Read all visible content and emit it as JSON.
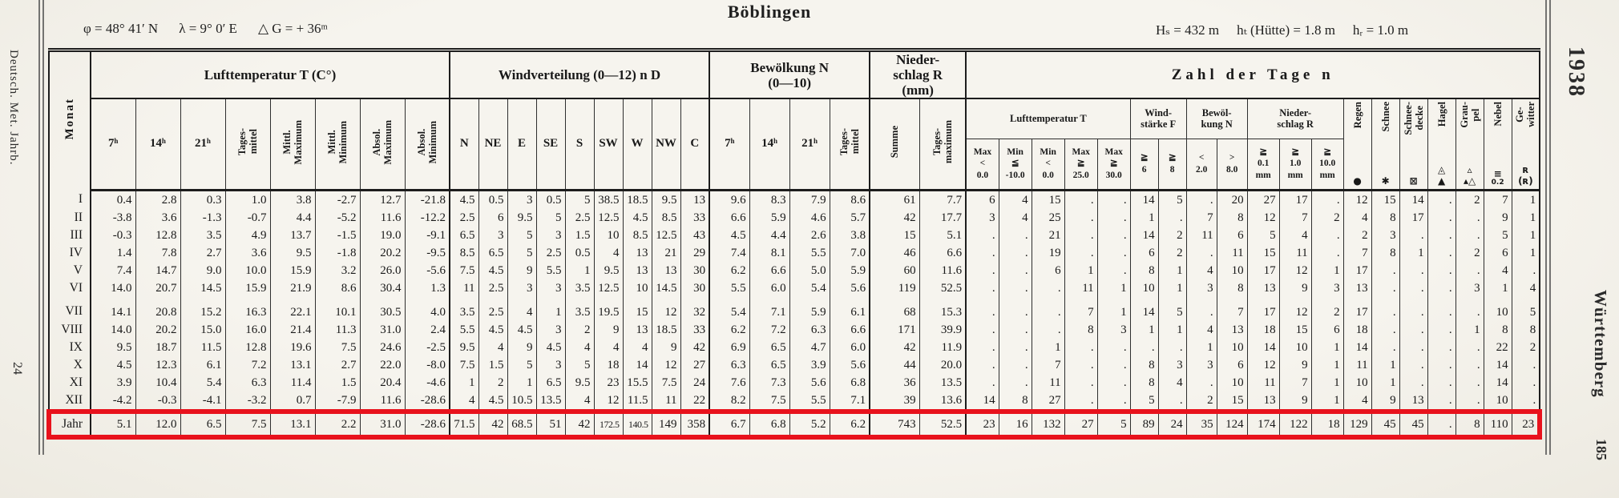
{
  "annotation": {
    "label": "year-row-highlight",
    "color": "#e8121c"
  },
  "margins": {
    "left_top": "Deutsch. Met. Jahrb.",
    "left_bottom": "24",
    "right_year": "1938",
    "right_region": "Württemberg",
    "right_page": "185"
  },
  "header": {
    "title": "Böblingen",
    "phi": "φ = 48° 41′ N",
    "lambda": "λ = 9° 0′ E",
    "delta_g": "△ G = + 36ᵐ",
    "h_station": "Hₛ = 432 m",
    "h_hut": "hₜ (Hütte) = 1.8 m",
    "h_rain": "hᵣ = 1.0 m"
  },
  "table": {
    "month_header": "Monat",
    "groups": [
      {
        "id": "temp",
        "title": "Lufttemperatur T (C°)",
        "cols": [
          "7ʰ",
          "14ʰ",
          "21ʰ",
          "Tages-\nmittel",
          "Mittl.\nMaximum",
          "Mittl.\nMinimum",
          "Absol.\nMaximum",
          "Absol.\nMinimum"
        ]
      },
      {
        "id": "wind",
        "title": "Windverteilung (0—12) n D",
        "cols": [
          "N",
          "NE",
          "E",
          "SE",
          "S",
          "SW",
          "W",
          "NW",
          "C"
        ]
      },
      {
        "id": "cloud",
        "title": "Bewölkung N\n(0—10)",
        "cols": [
          "7ʰ",
          "14ʰ",
          "21ʰ",
          "Tages-\nmittel"
        ]
      },
      {
        "id": "precip",
        "title": "Nieder-\nschlag R\n(mm)",
        "cols": [
          "Summe",
          "Tages-\nmaximum"
        ]
      },
      {
        "id": "days",
        "title": "Zahl der Tage n",
        "subgroups": [
          {
            "title": "Lufttemperatur T",
            "cols": [
              "Max\n<\n0.0",
              "Min\n≦\n-10.0",
              "Min\n<\n0.0",
              "Max\n≧\n25.0",
              "Max\n≧\n30.0"
            ]
          },
          {
            "title": "Wind-\nstärke F",
            "cols": [
              "≧\n6",
              "≧\n8"
            ]
          },
          {
            "title": "Bewöl-\nkung N",
            "cols": [
              "<\n2.0",
              ">\n8.0"
            ]
          },
          {
            "title": "Nieder-\nschlag R",
            "cols": [
              "≧\n0.1\nmm",
              "≧\n1.0\nmm",
              "≧\n10.0\nmm"
            ]
          }
        ],
        "singles": [
          {
            "label": "Regen",
            "icon": "●",
            "icon_name": "rain-icon"
          },
          {
            "label": "Schnee",
            "icon": "✱",
            "icon_name": "snow-icon"
          },
          {
            "label": "Schnee-\ndecke",
            "icon": "⊠",
            "icon_name": "snow-cover-icon"
          },
          {
            "label": "Hagel",
            "icon": "◬\n▲",
            "icon_name": "hail-icon"
          },
          {
            "label": "Grau-\npel",
            "icon": "▵\n▴△",
            "icon_name": "graupel-icon"
          },
          {
            "label": "Nebel",
            "icon": "≡",
            "icon_sub": "0.2",
            "icon_name": "fog-icon"
          },
          {
            "label": "Ge-\nwitter",
            "icon": "ʀ\n(ʀ)",
            "icon_name": "thunderstorm-icon"
          }
        ]
      }
    ],
    "rows": [
      {
        "month": "I",
        "values": [
          "0.4",
          "2.8",
          "0.3",
          "1.0",
          "3.8",
          "-2.7",
          "12.7",
          "-21.8",
          "4.5",
          "0.5",
          "3",
          "0.5",
          "5",
          "38.5",
          "18.5",
          "9.5",
          "13",
          "9.6",
          "8.3",
          "7.9",
          "8.6",
          "61",
          "7.7",
          "6",
          "4",
          "15",
          ".",
          ".",
          "14",
          "5",
          ".",
          "20",
          "27",
          "17",
          ".",
          "12",
          "15",
          "14",
          ".",
          "2",
          "7",
          "1"
        ]
      },
      {
        "month": "II",
        "values": [
          "-3.8",
          "3.6",
          "-1.3",
          "-0.7",
          "4.4",
          "-5.2",
          "11.6",
          "-12.2",
          "2.5",
          "6",
          "9.5",
          "5",
          "2.5",
          "12.5",
          "4.5",
          "8.5",
          "33",
          "6.6",
          "5.9",
          "4.6",
          "5.7",
          "42",
          "17.7",
          "3",
          "4",
          "25",
          ".",
          ".",
          "1",
          ".",
          "7",
          "8",
          "12",
          "7",
          "2",
          "4",
          "8",
          "17",
          ".",
          ".",
          "9",
          "1"
        ]
      },
      {
        "month": "III",
        "values": [
          "-0.3",
          "12.8",
          "3.5",
          "4.9",
          "13.7",
          "-1.5",
          "19.0",
          "-9.1",
          "6.5",
          "3",
          "5",
          "3",
          "1.5",
          "10",
          "8.5",
          "12.5",
          "43",
          "4.5",
          "4.4",
          "2.6",
          "3.8",
          "15",
          "5.1",
          ".",
          ".",
          "21",
          ".",
          ".",
          "14",
          "2",
          "11",
          "6",
          "5",
          "4",
          ".",
          "2",
          "3",
          ".",
          ".",
          ".",
          "5",
          "1"
        ]
      },
      {
        "month": "IV",
        "values": [
          "1.4",
          "7.8",
          "2.7",
          "3.6",
          "9.5",
          "-1.8",
          "20.2",
          "-9.5",
          "8.5",
          "6.5",
          "5",
          "2.5",
          "0.5",
          "4",
          "13",
          "21",
          "29",
          "7.4",
          "8.1",
          "5.5",
          "7.0",
          "46",
          "6.6",
          ".",
          ".",
          "19",
          ".",
          ".",
          "6",
          "2",
          ".",
          "11",
          "15",
          "11",
          ".",
          "7",
          "8",
          "1",
          ".",
          "2",
          "6",
          "1"
        ]
      },
      {
        "month": "V",
        "values": [
          "7.4",
          "14.7",
          "9.0",
          "10.0",
          "15.9",
          "3.2",
          "26.0",
          "-5.6",
          "7.5",
          "4.5",
          "9",
          "5.5",
          "1",
          "9.5",
          "13",
          "13",
          "30",
          "6.2",
          "6.6",
          "5.0",
          "5.9",
          "60",
          "11.6",
          ".",
          ".",
          "6",
          "1",
          ".",
          "8",
          "1",
          "4",
          "10",
          "17",
          "12",
          "1",
          "17",
          ".",
          ".",
          ".",
          ".",
          "4",
          "."
        ]
      },
      {
        "month": "VI",
        "values": [
          "14.0",
          "20.7",
          "14.5",
          "15.9",
          "21.9",
          "8.6",
          "30.4",
          "1.3",
          "11",
          "2.5",
          "3",
          "3",
          "3.5",
          "12.5",
          "10",
          "14.5",
          "30",
          "5.5",
          "6.0",
          "5.4",
          "5.6",
          "119",
          "52.5",
          ".",
          ".",
          ".",
          "11",
          "1",
          "10",
          "1",
          "3",
          "8",
          "13",
          "9",
          "3",
          "13",
          ".",
          ".",
          ".",
          "3",
          "1",
          "4"
        ]
      },
      {
        "month": "VII",
        "values": [
          "14.1",
          "20.8",
          "15.2",
          "16.3",
          "22.1",
          "10.1",
          "30.5",
          "4.0",
          "3.5",
          "2.5",
          "4",
          "1",
          "3.5",
          "19.5",
          "15",
          "12",
          "32",
          "5.4",
          "7.1",
          "5.9",
          "6.1",
          "68",
          "15.3",
          ".",
          ".",
          ".",
          "7",
          "1",
          "14",
          "5",
          ".",
          "7",
          "17",
          "12",
          "2",
          "17",
          ".",
          ".",
          ".",
          ".",
          "10",
          "5"
        ]
      },
      {
        "month": "VIII",
        "values": [
          "14.0",
          "20.2",
          "15.0",
          "16.0",
          "21.4",
          "11.3",
          "31.0",
          "2.4",
          "5.5",
          "4.5",
          "4.5",
          "3",
          "2",
          "9",
          "13",
          "18.5",
          "33",
          "6.2",
          "7.2",
          "6.3",
          "6.6",
          "171",
          "39.9",
          ".",
          ".",
          ".",
          "8",
          "3",
          "1",
          "1",
          "4",
          "13",
          "18",
          "15",
          "6",
          "18",
          ".",
          ".",
          ".",
          "1",
          "8",
          "8"
        ]
      },
      {
        "month": "IX",
        "values": [
          "9.5",
          "18.7",
          "11.5",
          "12.8",
          "19.6",
          "7.5",
          "24.6",
          "-2.5",
          "9.5",
          "4",
          "9",
          "4.5",
          "4",
          "4",
          "4",
          "9",
          "42",
          "6.9",
          "6.5",
          "4.7",
          "6.0",
          "42",
          "11.9",
          ".",
          ".",
          "1",
          ".",
          ".",
          ".",
          ".",
          "1",
          "10",
          "14",
          "10",
          "1",
          "14",
          ".",
          ".",
          ".",
          ".",
          "22",
          "2"
        ]
      },
      {
        "month": "X",
        "values": [
          "4.5",
          "12.3",
          "6.1",
          "7.2",
          "13.1",
          "2.7",
          "22.0",
          "-8.0",
          "7.5",
          "1.5",
          "5",
          "3",
          "5",
          "18",
          "14",
          "12",
          "27",
          "6.3",
          "6.5",
          "3.9",
          "5.6",
          "44",
          "20.0",
          ".",
          ".",
          "7",
          ".",
          ".",
          "8",
          "3",
          "3",
          "6",
          "12",
          "9",
          "1",
          "11",
          "1",
          ".",
          ".",
          ".",
          "14",
          "."
        ]
      },
      {
        "month": "XI",
        "values": [
          "3.9",
          "10.4",
          "5.4",
          "6.3",
          "11.4",
          "1.5",
          "20.4",
          "-4.6",
          "1",
          "2",
          "1",
          "6.5",
          "9.5",
          "23",
          "15.5",
          "7.5",
          "24",
          "7.6",
          "7.3",
          "5.6",
          "6.8",
          "36",
          "13.5",
          ".",
          ".",
          "11",
          ".",
          ".",
          "8",
          "4",
          ".",
          "10",
          "11",
          "7",
          "1",
          "10",
          "1",
          ".",
          ".",
          ".",
          "14",
          "."
        ]
      },
      {
        "month": "XII",
        "values": [
          "-4.2",
          "-0.3",
          "-4.1",
          "-3.2",
          "0.7",
          "-7.9",
          "11.6",
          "-28.6",
          "4",
          "4.5",
          "10.5",
          "13.5",
          "4",
          "12",
          "11.5",
          "11",
          "22",
          "8.2",
          "7.5",
          "5.5",
          "7.1",
          "39",
          "13.6",
          "14",
          "8",
          "27",
          ".",
          ".",
          "5",
          ".",
          "2",
          "15",
          "13",
          "9",
          "1",
          "4",
          "9",
          "13",
          ".",
          ".",
          "10",
          "."
        ]
      }
    ],
    "year_row": {
      "month": "Jahr",
      "values": [
        "5.1",
        "12.0",
        "6.5",
        "7.5",
        "13.1",
        "2.2",
        "31.0",
        "-28.6",
        "71.5",
        "42",
        "68.5",
        "51",
        "42",
        "172.5",
        "140.5",
        "149",
        "358",
        "6.7",
        "6.8",
        "5.2",
        "6.2",
        "743",
        "52.5",
        "23",
        "16",
        "132",
        "27",
        "5",
        "89",
        "24",
        "35",
        "124",
        "174",
        "122",
        "18",
        "129",
        "45",
        "45",
        ".",
        "8",
        "110",
        "23"
      ]
    }
  }
}
